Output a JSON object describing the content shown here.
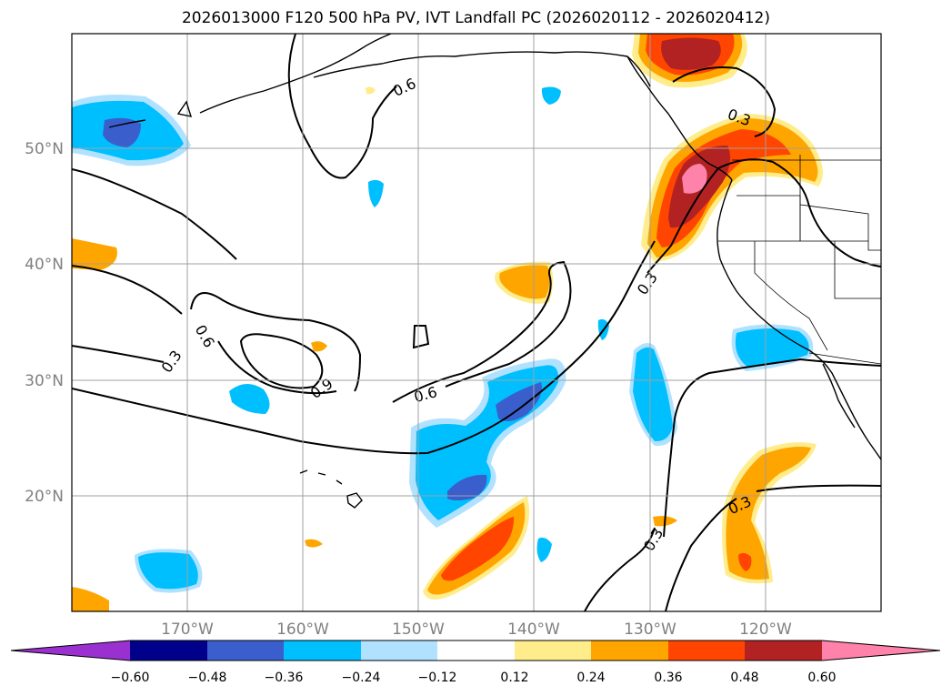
{
  "title": "2026013000 F120 500 hPa PV, IVT Landfall PC (2026020112 - 2026020412)",
  "lat_labels": [
    "50°N",
    "40°N",
    "30°N",
    "20°N"
  ],
  "lon_labels": [
    "170°W",
    "160°W",
    "150°W",
    "140°W",
    "130°W",
    "120°W"
  ],
  "contour_labels": [
    "0.6",
    "0.3",
    "0.6",
    "0.3",
    "0.9",
    "0.3",
    "0.6",
    "0.3",
    "0.3"
  ],
  "colorbar": {
    "ticks": [
      "−0.60",
      "−0.48",
      "−0.36",
      "−0.24",
      "−0.12",
      "0.12",
      "0.24",
      "0.36",
      "0.48",
      "0.60"
    ],
    "colors": [
      "#9b30d0",
      "#00008b",
      "#3a5fcd",
      "#00bfff",
      "#b0e2ff",
      "#ffffff",
      "#ffec8b",
      "#ffa500",
      "#ff4500",
      "#b22222",
      "#ff82ab"
    ]
  },
  "colors": {
    "neg_light": "#b0e2ff",
    "neg_mid": "#00bfff",
    "neg_dark": "#3a5fcd",
    "pos_light": "#ffec8b",
    "pos_mid": "#ffa500",
    "pos_strong": "#ff4500",
    "pos_darker": "#b22222",
    "pos_max": "#ff82ab"
  }
}
